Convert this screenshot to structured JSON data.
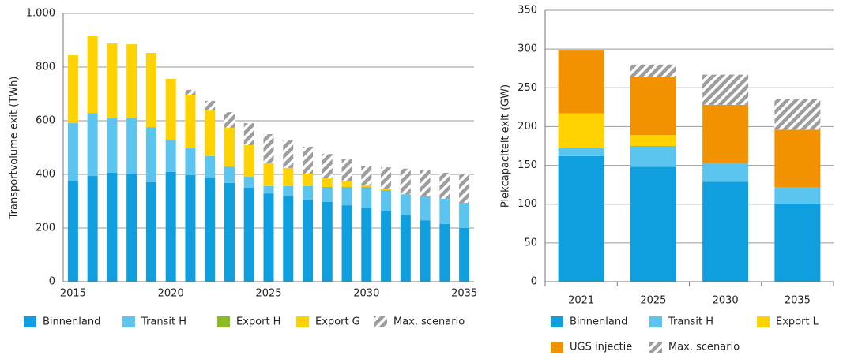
{
  "chart_data": [
    {
      "type": "stacked-bar",
      "y_label": "Transportvolume exit (TWh)",
      "x": [
        2015,
        2016,
        2017,
        2018,
        2019,
        2020,
        2021,
        2022,
        2023,
        2024,
        2025,
        2026,
        2027,
        2028,
        2029,
        2030,
        2031,
        2032,
        2033,
        2034,
        2035
      ],
      "xlim": [
        2014.5,
        2035.5
      ],
      "xticks": [
        2015,
        2020,
        2025,
        2030,
        2035
      ],
      "ylim": [
        0,
        1000
      ],
      "yticks": [
        0,
        200,
        400,
        600,
        800,
        {
          "value": 1000,
          "label": "1.000"
        }
      ],
      "grid": true,
      "series": [
        {
          "name": "Binnenland",
          "color": "#0f9fdf",
          "values": [
            376,
            394,
            406,
            403,
            371,
            409,
            397,
            388,
            368,
            350,
            329,
            318,
            306,
            297,
            285,
            274,
            262,
            247,
            229,
            215,
            200
          ]
        },
        {
          "name": "Transit H",
          "color": "#5bc4ef",
          "values": [
            215,
            235,
            206,
            206,
            205,
            120,
            100,
            80,
            61,
            41,
            27,
            38,
            50,
            56,
            68,
            79,
            79,
            79,
            89,
            94,
            94
          ]
        },
        {
          "name": "Export H",
          "color": "#8dbb24",
          "values": [
            0,
            0,
            0,
            0,
            0,
            0,
            0,
            0,
            0,
            0,
            0,
            0,
            0,
            0,
            0,
            0,
            0,
            0,
            0,
            0,
            0
          ]
        },
        {
          "name": "Export G",
          "color": "#ffd200",
          "values": [
            253,
            286,
            276,
            276,
            277,
            227,
            200,
            170,
            145,
            118,
            85,
            68,
            47,
            32,
            21,
            6,
            3,
            0,
            0,
            0,
            0
          ]
        },
        {
          "name": "Max. scenario",
          "color": "#9d9d9d",
          "hatch": true,
          "values": [
            0,
            0,
            0,
            0,
            0,
            0,
            18,
            36,
            58,
            82,
            109,
            102,
            100,
            91,
            82,
            73,
            82,
            95,
            97,
            97,
            109
          ]
        }
      ]
    },
    {
      "type": "stacked-bar",
      "y_label": "Piekcapaciteit exit (GW)",
      "categories": [
        "2021",
        "2025",
        "2030",
        "2035"
      ],
      "ylim": [
        0,
        350
      ],
      "yticks": [
        0,
        50,
        100,
        150,
        200,
        250,
        300,
        350
      ],
      "grid": true,
      "series": [
        {
          "name": "Binnenland",
          "color": "#0f9fdf",
          "values": [
            162,
            148,
            129,
            101
          ]
        },
        {
          "name": "Transit H",
          "color": "#5bc4ef",
          "values": [
            10,
            27,
            24,
            21
          ]
        },
        {
          "name": "Export L",
          "color": "#ffd200",
          "values": [
            45,
            14,
            0,
            0
          ]
        },
        {
          "name": "UGS injectie",
          "color": "#f39200",
          "values": [
            81,
            75,
            75,
            74
          ]
        },
        {
          "name": "Max. scenario",
          "color": "#9d9d9d",
          "hatch": true,
          "values": [
            0,
            16,
            39,
            40
          ]
        }
      ]
    }
  ]
}
